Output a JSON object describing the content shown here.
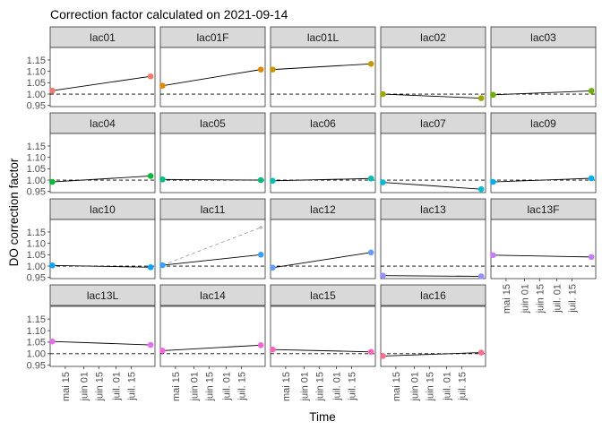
{
  "chart_data": {
    "type": "line",
    "title": "Correction factor calculated on 2021-09-14",
    "xlabel": "Time",
    "ylabel": "DO correction factor",
    "xlim": [
      "2021-05-01",
      "2021-08-06"
    ],
    "ylim": [
      0.945,
      1.205
    ],
    "y_ticks": [
      0.95,
      1.0,
      1.05,
      1.1,
      1.15
    ],
    "y_tick_labels": [
      "0.95",
      "1.00",
      "1.05",
      "1.10",
      "1.15"
    ],
    "x_ticks": [
      "2021-05-15",
      "2021-06-01",
      "2021-06-15",
      "2021-07-01",
      "2021-07-15"
    ],
    "x_tick_labels": [
      "mai 15",
      "juin 01",
      "juin 15",
      "juil. 01",
      "juil. 15"
    ],
    "reference_line": 1.0,
    "grid": false,
    "legend": "none",
    "panels": [
      {
        "name": "lac01",
        "color": "#F8766D",
        "points": [
          [
            "2021-05-03",
            1.015
          ],
          [
            "2021-08-02",
            1.078
          ]
        ]
      },
      {
        "name": "lac01F",
        "color": "#E58700",
        "points": [
          [
            "2021-05-03",
            1.037
          ],
          [
            "2021-08-02",
            1.108
          ]
        ]
      },
      {
        "name": "lac01L",
        "color": "#C99800",
        "points": [
          [
            "2021-05-03",
            1.108
          ],
          [
            "2021-08-02",
            1.133
          ]
        ]
      },
      {
        "name": "lac02",
        "color": "#A3A500",
        "points": [
          [
            "2021-05-03",
            1.0
          ],
          [
            "2021-08-02",
            0.982
          ]
        ]
      },
      {
        "name": "lac03",
        "color": "#6BB100",
        "points": [
          [
            "2021-05-03",
            0.997
          ],
          [
            "2021-08-02",
            1.014
          ]
        ]
      },
      {
        "name": "lac04",
        "color": "#00BA38",
        "points": [
          [
            "2021-05-03",
            0.992
          ],
          [
            "2021-08-02",
            1.018
          ]
        ]
      },
      {
        "name": "lac05",
        "color": "#00BF7D",
        "points": [
          [
            "2021-05-03",
            1.003
          ],
          [
            "2021-08-02",
            1.0
          ]
        ]
      },
      {
        "name": "lac06",
        "color": "#00C0AF",
        "points": [
          [
            "2021-05-03",
            0.997
          ],
          [
            "2021-08-02",
            1.007
          ]
        ]
      },
      {
        "name": "lac07",
        "color": "#00BCD8",
        "points": [
          [
            "2021-05-03",
            0.99
          ],
          [
            "2021-08-02",
            0.96
          ]
        ]
      },
      {
        "name": "lac09",
        "color": "#00B0F6",
        "points": [
          [
            "2021-05-03",
            0.992
          ],
          [
            "2021-08-02",
            1.008
          ]
        ]
      },
      {
        "name": "lac10",
        "color": "#00A5FF",
        "points": [
          [
            "2021-05-03",
            1.003
          ],
          [
            "2021-08-02",
            0.995
          ]
        ]
      },
      {
        "name": "lac11",
        "color": "#35A2FF",
        "points": [
          [
            "2021-05-03",
            1.004
          ],
          [
            "2021-08-02",
            1.05
          ]
        ],
        "extra_dashed": [
          [
            "2021-05-03",
            1.004
          ],
          [
            "2021-08-02",
            1.17
          ]
        ]
      },
      {
        "name": "lac12",
        "color": "#619CFF",
        "points": [
          [
            "2021-05-03",
            0.993
          ],
          [
            "2021-08-02",
            1.06
          ]
        ]
      },
      {
        "name": "lac13",
        "color": "#9590FF",
        "points": [
          [
            "2021-05-03",
            0.958
          ],
          [
            "2021-08-02",
            0.955
          ]
        ]
      },
      {
        "name": "lac13F",
        "color": "#C77CFF",
        "points": [
          [
            "2021-05-03",
            1.048
          ],
          [
            "2021-08-02",
            1.04
          ]
        ]
      },
      {
        "name": "lac13L",
        "color": "#E76BF3",
        "points": [
          [
            "2021-05-03",
            1.053
          ],
          [
            "2021-08-02",
            1.038
          ]
        ]
      },
      {
        "name": "lac14",
        "color": "#FA62DB",
        "points": [
          [
            "2021-05-03",
            1.013
          ],
          [
            "2021-08-02",
            1.037
          ]
        ]
      },
      {
        "name": "lac15",
        "color": "#FF62BC",
        "points": [
          [
            "2021-05-03",
            1.018
          ],
          [
            "2021-08-02",
            1.008
          ]
        ]
      },
      {
        "name": "lac16",
        "color": "#FF6C91",
        "points": [
          [
            "2021-05-03",
            0.99
          ],
          [
            "2021-08-02",
            1.005
          ]
        ]
      }
    ]
  }
}
